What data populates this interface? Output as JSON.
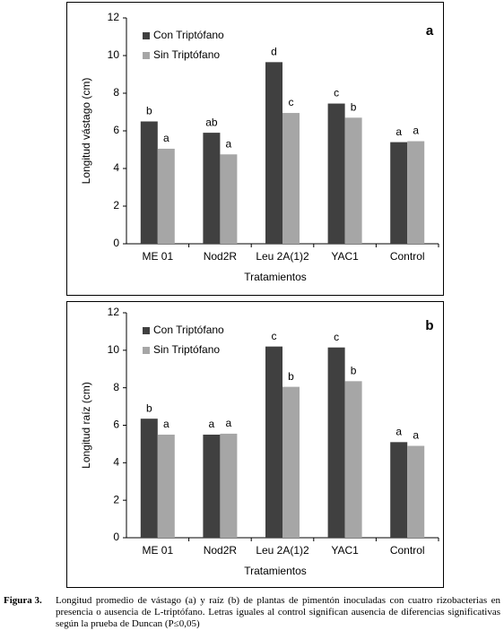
{
  "chart_data": [
    {
      "type": "bar",
      "panel": "a",
      "ylabel": "Longitud vástago  (cm)",
      "xlabel": "Tratamientos",
      "categories": [
        "ME 01",
        "Nod2R",
        "Leu 2A(1)2",
        "YAC1",
        "Control"
      ],
      "series": [
        {
          "name": "Con Triptófano",
          "color": "#404040",
          "values": [
            6.5,
            5.9,
            9.65,
            7.45,
            5.4
          ],
          "letters": [
            "b",
            "ab",
            "d",
            "c",
            "a"
          ]
        },
        {
          "name": "Sin Triptófano",
          "color": "#a6a6a6",
          "values": [
            5.05,
            4.75,
            6.95,
            6.7,
            5.45
          ],
          "letters": [
            "a",
            "a",
            "c",
            "b",
            "a"
          ]
        }
      ],
      "ylim": [
        0,
        12
      ],
      "yticks": [
        0,
        2,
        4,
        6,
        8,
        10,
        12
      ],
      "legend": "top-left"
    },
    {
      "type": "bar",
      "panel": "b",
      "ylabel": "Longitud raíz (cm)",
      "xlabel": "Tratamientos",
      "categories": [
        "ME 01",
        "Nod2R",
        "Leu 2A(1)2",
        "YAC1",
        "Control"
      ],
      "series": [
        {
          "name": "Con Triptófano",
          "color": "#404040",
          "values": [
            6.35,
            5.5,
            10.2,
            10.15,
            5.1
          ],
          "letters": [
            "b",
            "a",
            "c",
            "c",
            "a"
          ]
        },
        {
          "name": "Sin Triptófano",
          "color": "#a6a6a6",
          "values": [
            5.5,
            5.55,
            8.05,
            8.35,
            4.9
          ],
          "letters": [
            "a",
            "a",
            "b",
            "b",
            "a"
          ]
        }
      ],
      "ylim": [
        0,
        12
      ],
      "yticks": [
        0,
        2,
        4,
        6,
        8,
        10,
        12
      ],
      "legend": "top-left"
    }
  ],
  "caption": {
    "label": "Figura 3.",
    "text": "Longitud promedio de vástago (a) y raíz (b) de plantas de pimentón inoculadas con cuatro rizobacterias en presencia o ausencia de L-triptófano. Letras iguales al control significan ausencia de diferencias significativas según la prueba de Duncan (P≤0,05)"
  }
}
